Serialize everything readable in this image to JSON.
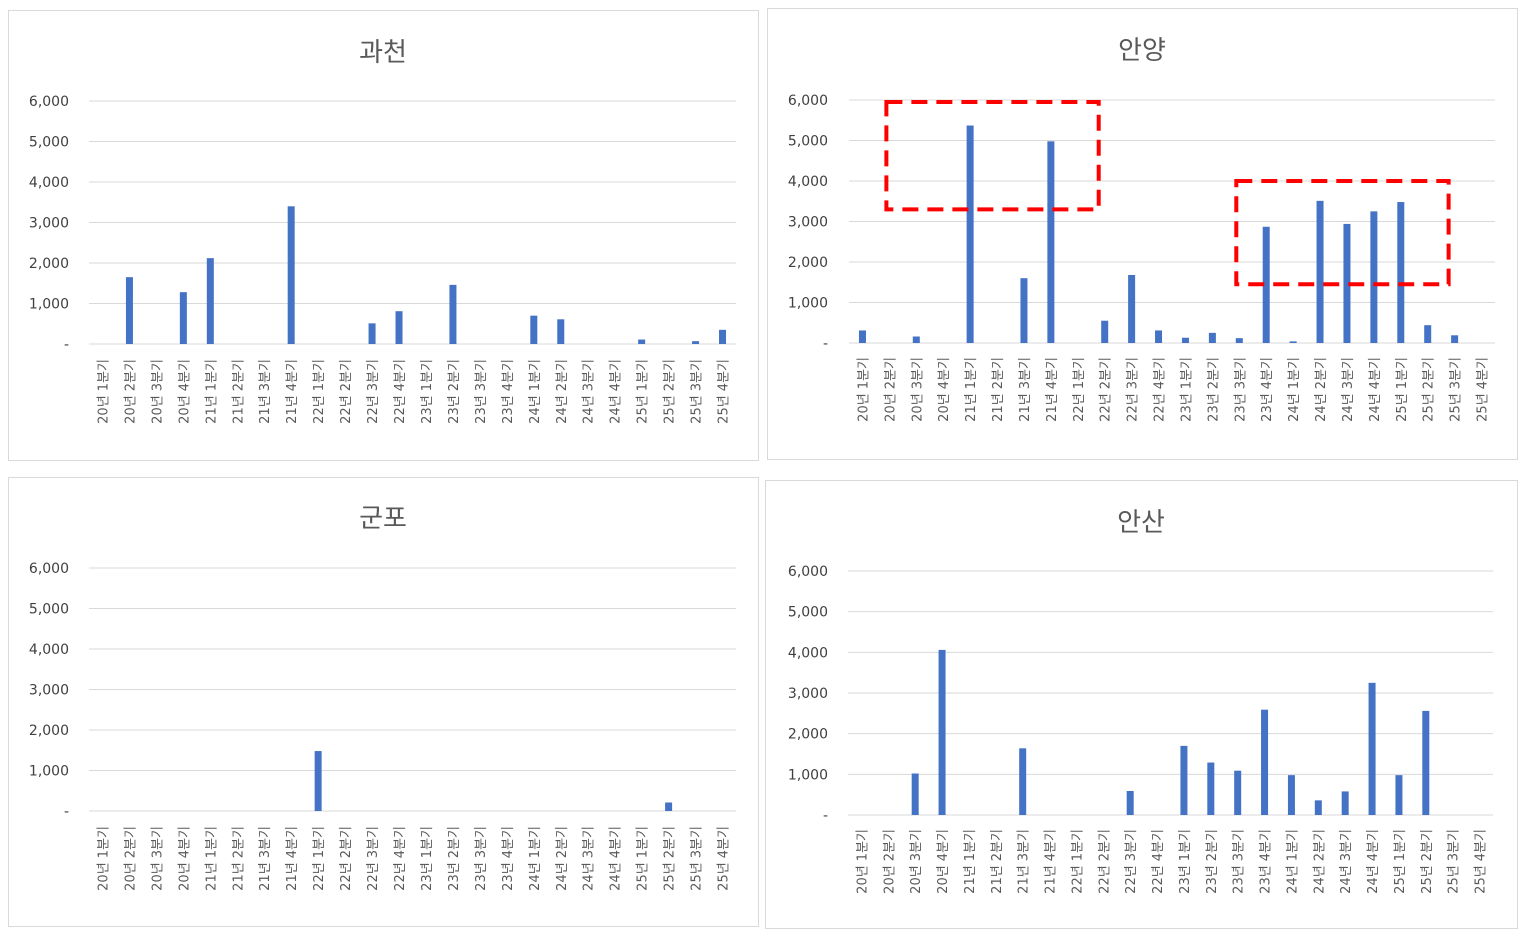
{
  "chart_data": [
    {
      "type": "bar",
      "title": "과천",
      "categories": [
        "20년 1분기",
        "20년 2분기",
        "20년 3분기",
        "20년 4분기",
        "21년 1분기",
        "21년 2분기",
        "21년 3분기",
        "21년 4분기",
        "22년 1분기",
        "22년 2분기",
        "22년 3분기",
        "22년 4분기",
        "23년 1분기",
        "23년 2분기",
        "23년 3분기",
        "23년 4분기",
        "24년 1분기",
        "24년 2분기",
        "24년 3분기",
        "24년 4분기",
        "25년 1분기",
        "25년 2분기",
        "25년 3분기",
        "25년 4분기"
      ],
      "values": [
        0,
        1650,
        0,
        1280,
        2120,
        0,
        0,
        3400,
        0,
        0,
        510,
        810,
        0,
        1460,
        0,
        0,
        700,
        610,
        0,
        0,
        110,
        0,
        70,
        350
      ],
      "ylim": [
        0,
        6000
      ],
      "yticks": [
        "-",
        "1,000",
        "2,000",
        "3,000",
        "4,000",
        "5,000",
        "6,000"
      ],
      "grid": true,
      "bar_color": "#4472c4"
    },
    {
      "type": "bar",
      "title": "안양",
      "categories": [
        "20년 1분기",
        "20년 2분기",
        "20년 3분기",
        "20년 4분기",
        "21년 1분기",
        "21년 2분기",
        "21년 3분기",
        "21년 4분기",
        "22년 1분기",
        "22년 2분기",
        "22년 3분기",
        "22년 4분기",
        "23년 1분기",
        "23년 2분기",
        "23년 3분기",
        "23년 4분기",
        "24년 1분기",
        "24년 2분기",
        "24년 3분기",
        "24년 4분기",
        "25년 1분기",
        "25년 2분기",
        "25년 3분기",
        "25년 4분기"
      ],
      "values": [
        310,
        0,
        160,
        0,
        5370,
        0,
        1600,
        4980,
        0,
        550,
        1680,
        310,
        130,
        250,
        120,
        2870,
        40,
        3510,
        2940,
        3250,
        3480,
        440,
        190,
        0
      ],
      "ylim": [
        0,
        6000
      ],
      "yticks": [
        "-",
        "1,000",
        "2,000",
        "3,000",
        "4,000",
        "5,000",
        "6,000"
      ],
      "grid": true,
      "bar_color": "#4472c4",
      "highlight_color": "#ff0000",
      "highlights": [
        {
          "from_category": "20년 2분기",
          "to_category": "22년 2분기",
          "y_from": 3300,
          "y_to": 5950
        },
        {
          "from_category": "23년 3분기",
          "to_category": "25년 3분기",
          "y_from": 1450,
          "y_to": 4000
        }
      ]
    },
    {
      "type": "bar",
      "title": "군포",
      "categories": [
        "20년 1분기",
        "20년 2분기",
        "20년 3분기",
        "20년 4분기",
        "21년 1분기",
        "21년 2분기",
        "21년 3분기",
        "21년 4분기",
        "22년 1분기",
        "22년 2분기",
        "22년 3분기",
        "22년 4분기",
        "23년 1분기",
        "23년 2분기",
        "23년 3분기",
        "23년 4분기",
        "24년 1분기",
        "24년 2분기",
        "24년 3분기",
        "24년 4분기",
        "25년 1분기",
        "25년 2분기",
        "25년 3분기",
        "25년 4분기"
      ],
      "values": [
        0,
        0,
        0,
        0,
        0,
        0,
        0,
        0,
        1480,
        0,
        0,
        0,
        0,
        0,
        0,
        0,
        0,
        0,
        0,
        0,
        0,
        210,
        0,
        0
      ],
      "ylim": [
        0,
        6000
      ],
      "yticks": [
        "-",
        "1,000",
        "2,000",
        "3,000",
        "4,000",
        "5,000",
        "6,000"
      ],
      "grid": true,
      "bar_color": "#4472c4"
    },
    {
      "type": "bar",
      "title": "안산",
      "categories": [
        "20년 1분기",
        "20년 2분기",
        "20년 3분기",
        "20년 4분기",
        "21년 1분기",
        "21년 2분기",
        "21년 3분기",
        "21년 4분기",
        "22년 1분기",
        "22년 2분기",
        "22년 3분기",
        "22년 4분기",
        "23년 1분기",
        "23년 2분기",
        "23년 3분기",
        "23년 4분기",
        "24년 1분기",
        "24년 2분기",
        "24년 3분기",
        "24년 4분기",
        "25년 1분기",
        "25년 2분기",
        "25년 3분기",
        "25년 4분기"
      ],
      "values": [
        0,
        0,
        1020,
        4060,
        0,
        0,
        1640,
        0,
        0,
        0,
        590,
        0,
        1700,
        1290,
        1090,
        2590,
        980,
        360,
        580,
        3250,
        980,
        2560,
        0,
        0
      ],
      "ylim": [
        0,
        6000
      ],
      "yticks": [
        "-",
        "1,000",
        "2,000",
        "3,000",
        "4,000",
        "5,000",
        "6,000"
      ],
      "grid": true,
      "bar_color": "#4472c4"
    }
  ]
}
